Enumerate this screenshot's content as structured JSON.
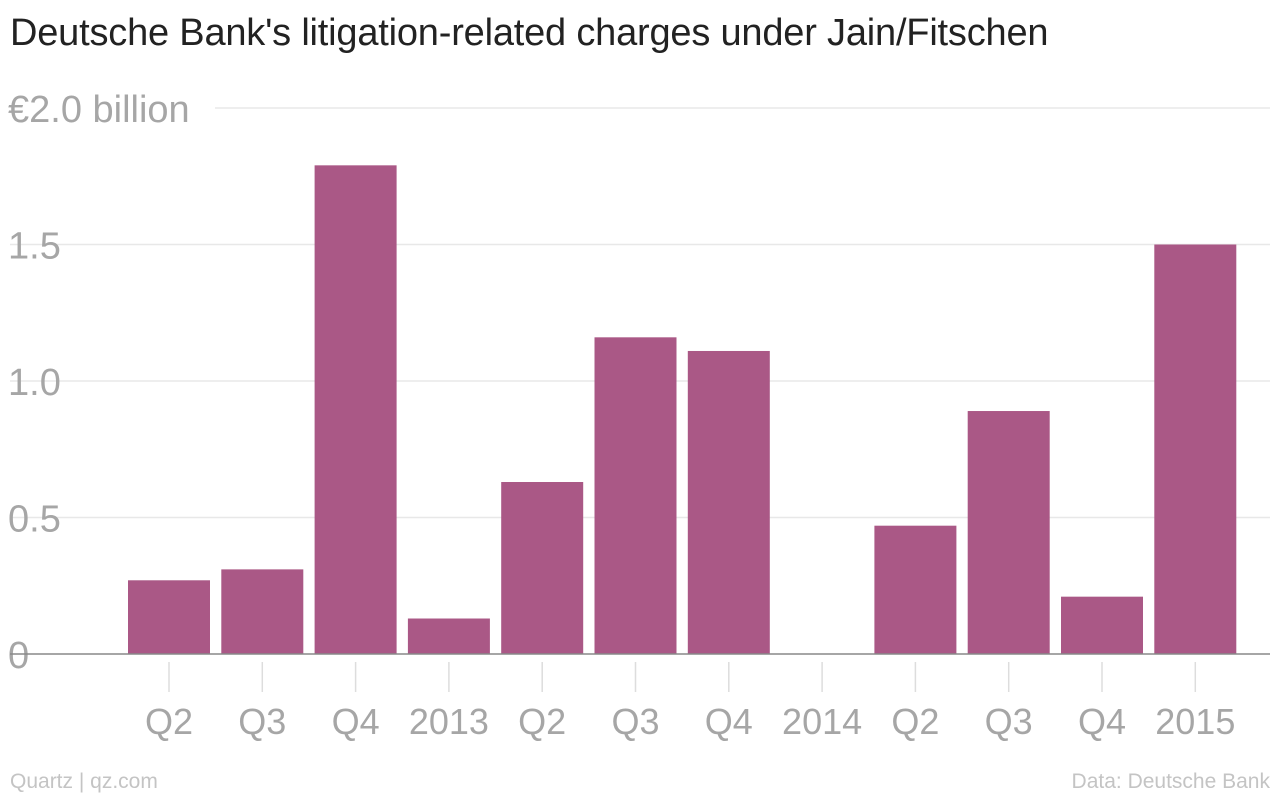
{
  "title": "Deutsche Bank's litigation-related charges under Jain/Fitschen",
  "chart_data": {
    "type": "bar",
    "categories": [
      "Q2",
      "Q3",
      "Q4",
      "2013",
      "Q2",
      "Q3",
      "Q4",
      "2014",
      "Q2",
      "Q3",
      "Q4",
      "2015"
    ],
    "values": [
      0.27,
      0.31,
      1.79,
      0.13,
      0.63,
      1.16,
      1.11,
      0,
      0.47,
      0.89,
      0.21,
      1.5
    ],
    "y_ticks": [
      {
        "value": 0,
        "label": "0"
      },
      {
        "value": 0.5,
        "label": "0.5"
      },
      {
        "value": 1.0,
        "label": "1.0"
      },
      {
        "value": 1.5,
        "label": "1.5"
      },
      {
        "value": 2.0,
        "label": "€2.0 billion"
      }
    ],
    "ylim": [
      0,
      2.0
    ],
    "grid": true,
    "bar_color": "#aa5886",
    "gridline_color": "#e8e8e8",
    "axis_color": "#888888",
    "tick_label_color": "#a6a6a6"
  },
  "footer": {
    "source_left": "Quartz | qz.com",
    "source_right": "Data: Deutsche Bank"
  }
}
